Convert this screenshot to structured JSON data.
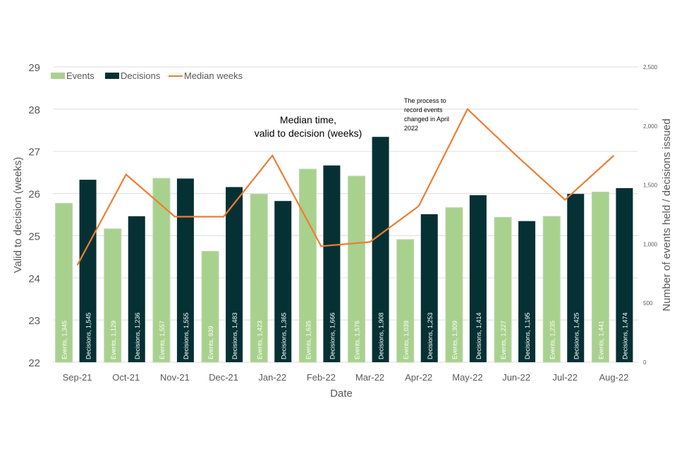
{
  "chart_data": {
    "type": "bar",
    "title": "Median time, valid to decision (weeks)",
    "annotation": "The process to record events changed in April 2022",
    "xlabel": "Date",
    "ylabel": "Valid to decision (weeks)",
    "y2label": "Number of events held / decisions issued",
    "ylim": [
      22,
      29
    ],
    "y2lim": [
      0,
      2500
    ],
    "yticks": [
      "22",
      "23",
      "24",
      "25",
      "26",
      "27",
      "28",
      "29"
    ],
    "y2ticks": [
      "0",
      "500",
      "1,000",
      "1,500",
      "2,000",
      "2,500"
    ],
    "grid": true,
    "legend_position": "top-left",
    "categories": [
      "Sep-21",
      "Oct-21",
      "Nov-21",
      "Dec-21",
      "Jan-22",
      "Feb-22",
      "Mar-22",
      "Apr-22",
      "May-22",
      "Jun-22",
      "Jul-22",
      "Aug-22"
    ],
    "series": [
      {
        "name": "Events",
        "type": "bar",
        "axis": "right",
        "color": "#a9d18e",
        "values": [
          1345,
          1129,
          1557,
          939,
          1423,
          1635,
          1576,
          1039,
          1309,
          1227,
          1235,
          1441
        ],
        "labels": [
          "Events, 1,345",
          "Events, 1,129",
          "Events, 1,557",
          "Events, 939",
          "Events, 1,423",
          "Events, 1,635",
          "Events, 1,576",
          "Events, 1,039",
          "Events, 1,309",
          "Events, 1,227",
          "Events, 1,235",
          "Events, 1,441"
        ]
      },
      {
        "name": "Decisions",
        "type": "bar",
        "axis": "right",
        "color": "#063134",
        "values": [
          1545,
          1236,
          1555,
          1483,
          1365,
          1666,
          1908,
          1253,
          1414,
          1195,
          1425,
          1474
        ],
        "labels": [
          "Decisions, 1,545",
          "Decisions, 1,236",
          "Decisions, 1,555",
          "Decisions, 1,483",
          "Decisions, 1,365",
          "Decisions, 1,666",
          "Decisions, 1,908",
          "Decisions, 1,253",
          "Decisions, 1,414",
          "Decisions, 1,195",
          "Decisions, 1,425",
          "Decisions, 1,474"
        ]
      },
      {
        "name": "Median weeks",
        "type": "line",
        "axis": "left",
        "color": "#ed7d31",
        "values": [
          24.3,
          26.45,
          25.45,
          25.45,
          26.9,
          24.75,
          24.85,
          25.7,
          28.0,
          26.9,
          25.85,
          26.9
        ]
      }
    ]
  }
}
